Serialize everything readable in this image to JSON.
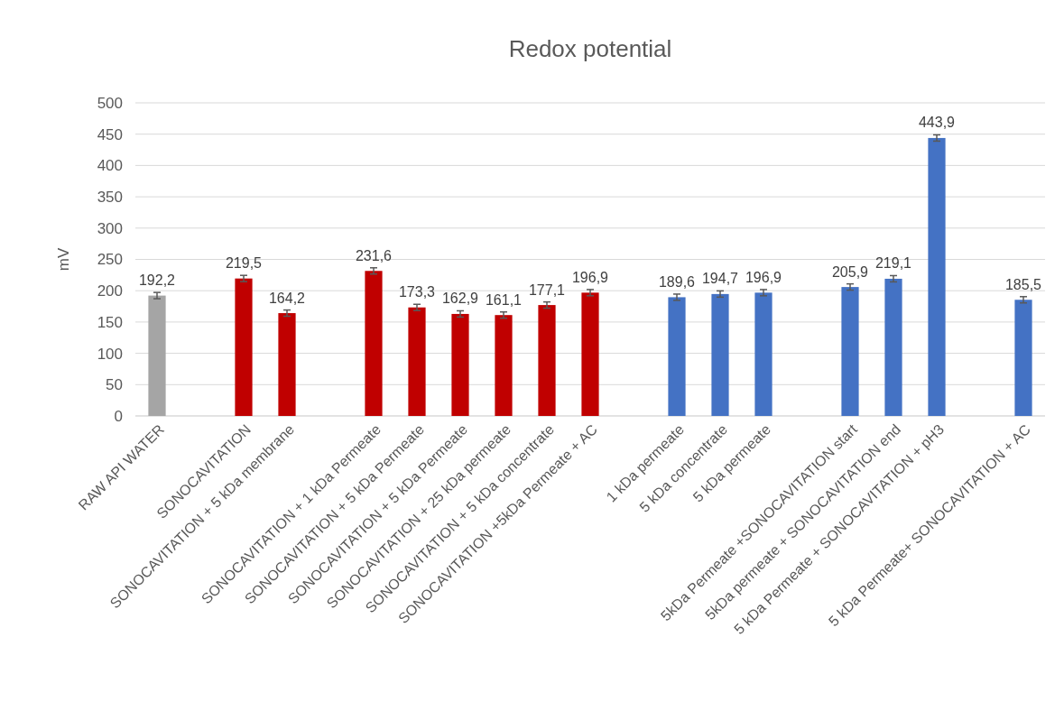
{
  "chart_data": {
    "type": "bar",
    "title": "Redox potential",
    "ylabel": "mV",
    "categories": [
      "RAW API WATER",
      null,
      "SONOCAVITATION",
      "SONOCAVITATION + 5 kDa membrane",
      null,
      "SONOCAVITATION + 1 kDa Permeate",
      "SONOCAVITATION + 5 kDa Permeate",
      "SONOCAVITATION + 5 kDa Permeate",
      "SONOCAVITATION + 25 kDa permeate",
      "SONOCAVITATION + 5 kDa concentrate",
      "SONOCAVITATION +5kDa Permeate + AC",
      null,
      "1 kDa permeate",
      "5 kDa concentrate",
      "5 kDa permeate",
      null,
      "5kDa Permeate +SONOCAVITATION start",
      "5kDa permeate + SONOCAVITATION end",
      "5 kDa Permeate + SONOCAVITATION + pH3",
      null,
      "5 kDa Permeate+ SONOCAVITATION + AC"
    ],
    "values": [
      192.2,
      null,
      219.5,
      164.2,
      null,
      231.6,
      173.3,
      162.9,
      161.1,
      177.1,
      196.9,
      null,
      189.6,
      194.7,
      196.9,
      null,
      205.9,
      219.1,
      443.9,
      null,
      185.5
    ],
    "value_labels": [
      "192,2",
      null,
      "219,5",
      "164,2",
      null,
      "231,6",
      "173,3",
      "162,9",
      "161,1",
      "177,1",
      "196,9",
      null,
      "189,6",
      "194,7",
      "196,9",
      null,
      "205,9",
      "219,1",
      "443,9",
      null,
      "185,5"
    ],
    "errors": [
      5,
      null,
      5,
      5,
      null,
      5,
      5,
      5,
      5,
      5,
      5,
      null,
      5,
      5,
      5,
      null,
      5,
      5,
      5,
      null,
      5
    ],
    "colors": [
      "#a5a5a5",
      null,
      "#c00000",
      "#c00000",
      null,
      "#c00000",
      "#c00000",
      "#c00000",
      "#c00000",
      "#c00000",
      "#c00000",
      null,
      "#4472c4",
      "#4472c4",
      "#4472c4",
      null,
      "#4472c4",
      "#4472c4",
      "#4472c4",
      null,
      "#4472c4"
    ],
    "ylim": [
      0,
      500
    ],
    "yticks": [
      0,
      50,
      100,
      150,
      200,
      250,
      300,
      350,
      400,
      450,
      500
    ],
    "grid": "y"
  }
}
